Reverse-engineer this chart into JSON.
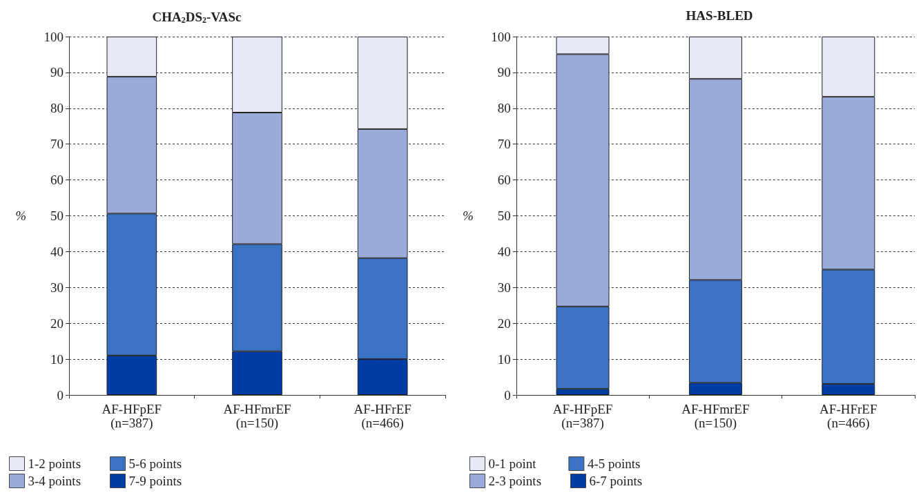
{
  "chart_data": [
    {
      "type": "bar",
      "title": "CHA$_{2}$DS$_{2}$-VASc",
      "ylabel": "%",
      "stacked": true,
      "categories": [
        "AF-HFpEF\n(n=387)",
        "AF-HFmrEF\n(n=150)",
        "AF-HFrEF\n(n=466)"
      ],
      "series": [
        {
          "name": "7-9 points",
          "color": "#003da5",
          "values": [
            11,
            12.2,
            10
          ]
        },
        {
          "name": "5-6 points",
          "color": "#3b72c4",
          "values": [
            39.6,
            29.9,
            28.2
          ]
        },
        {
          "name": "3-4 points",
          "color": "#9aabdb",
          "values": [
            38.2,
            36.7,
            36
          ]
        },
        {
          "name": "1-2 points",
          "color": "#e6e8f5",
          "values": [
            11.2,
            21.2,
            25.8
          ]
        }
      ],
      "ylim": [
        0,
        100
      ],
      "yticks": [
        0,
        10,
        20,
        30,
        40,
        50,
        60,
        70,
        80,
        90,
        100
      ],
      "grid": "y",
      "legend": "bottom left"
    },
    {
      "type": "bar",
      "title": "HAS-BLED",
      "ylabel": "%",
      "stacked": true,
      "categories": [
        "AF-HFpEF\n(n=387)",
        "AF-HFmrEF\n(n=150)",
        "AF-HFrEF\n(n=466)"
      ],
      "series": [
        {
          "name": "6-7 points",
          "color": "#003da5",
          "values": [
            1.7,
            3.4,
            3.1
          ]
        },
        {
          "name": "4-5 points",
          "color": "#3b72c4",
          "values": [
            23,
            28.7,
            31.9
          ]
        },
        {
          "name": "2-3 points",
          "color": "#9aabdb",
          "values": [
            70.4,
            56.1,
            48.2
          ]
        },
        {
          "name": "0-1 point",
          "color": "#e6e8f5",
          "values": [
            4.9,
            11.8,
            16.8
          ]
        }
      ],
      "ylim": [
        0,
        100
      ],
      "yticks": [
        0,
        10,
        20,
        30,
        40,
        50,
        60,
        70,
        80,
        90,
        100
      ],
      "grid": "y",
      "legend": "bottom left"
    }
  ]
}
